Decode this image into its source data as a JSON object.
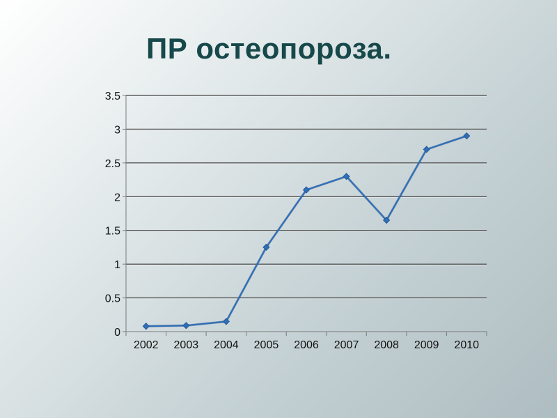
{
  "slide": {
    "title": "ПР остеопороза."
  },
  "chart_data": {
    "type": "line",
    "title": "",
    "xlabel": "",
    "ylabel": "",
    "categories": [
      "2002",
      "2003",
      "2004",
      "2005",
      "2006",
      "2007",
      "2008",
      "2009",
      "2010"
    ],
    "series": [
      {
        "values": [
          0.08,
          0.09,
          0.15,
          1.25,
          2.1,
          2.3,
          1.65,
          2.7,
          2.9
        ],
        "color": "#2f6fb8",
        "marker": "diamond"
      }
    ],
    "ylim": [
      0,
      3.5
    ],
    "yticks": [
      "0",
      "0.5",
      "1",
      "1.5",
      "2",
      "2.5",
      "3",
      "3.5"
    ],
    "grid": "horizontal",
    "legend": "none"
  }
}
